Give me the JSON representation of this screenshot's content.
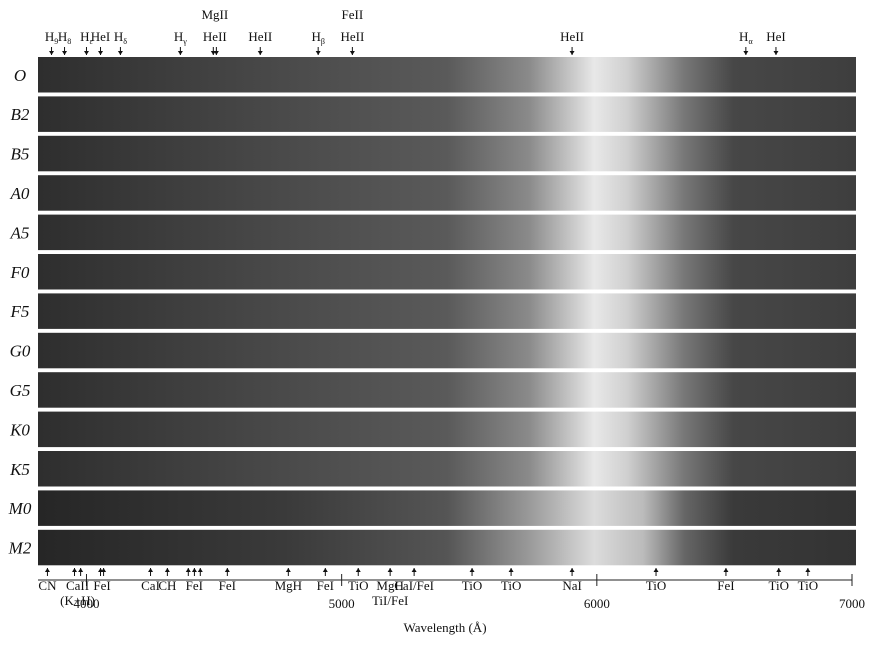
{
  "chart_data": {
    "type": "spectrum",
    "xlabel": "Wavelength (Å)",
    "xlim": [
      3810,
      7000
    ],
    "xticks": [
      4000,
      5000,
      6000,
      7000
    ],
    "categories": [
      "O",
      "B2",
      "B5",
      "A0",
      "A5",
      "F0",
      "F5",
      "G0",
      "G5",
      "K0",
      "K5",
      "M0",
      "M2"
    ],
    "top_lines": [
      {
        "text": "H",
        "sub": "9",
        "x": [
          3863
        ]
      },
      {
        "text": "H",
        "sub": "8",
        "x": [
          3914
        ]
      },
      {
        "text": "H",
        "sub": "ε",
        "x": [
          4000
        ]
      },
      {
        "text": "HeI",
        "x": [
          4055
        ]
      },
      {
        "text": "H",
        "sub": "δ",
        "x": [
          4133
        ]
      },
      {
        "text": "H",
        "sub": "γ",
        "x": [
          4368
        ]
      },
      {
        "text": "HeII",
        "above": "MgII",
        "x": [
          4497,
          4509
        ]
      },
      {
        "text": "HeII",
        "x": [
          4681
        ]
      },
      {
        "text": "H",
        "sub": "β",
        "x": [
          4908
        ]
      },
      {
        "text": "HeII",
        "above": "FeII",
        "x": [
          5042
        ]
      },
      {
        "text": "HeII",
        "x": [
          5903
        ]
      },
      {
        "text": "H",
        "sub": "α",
        "x": [
          6584
        ]
      },
      {
        "text": "HeI",
        "x": [
          6702
        ]
      }
    ],
    "bottom_lines": [
      {
        "text": "CN",
        "x": [
          3847
        ]
      },
      {
        "text": "CaII",
        "below": "(K+H)",
        "x": [
          3953,
          3977
        ]
      },
      {
        "text": "FeI",
        "x": [
          4055,
          4067
        ]
      },
      {
        "text": "CaI",
        "x": [
          4251
        ]
      },
      {
        "text": "CH",
        "x": [
          4317
        ]
      },
      {
        "text": "FeI",
        "x": [
          4399,
          4423,
          4446
        ]
      },
      {
        "text": "FeI",
        "x": [
          4552
        ]
      },
      {
        "text": "MgH",
        "x": [
          4791
        ]
      },
      {
        "text": "FeI",
        "x": [
          4936
        ]
      },
      {
        "text": "TiO",
        "x": [
          5065
        ]
      },
      {
        "text": "MgH",
        "below": "TiI/FeI",
        "x": [
          5190
        ]
      },
      {
        "text": "CaI/FeI",
        "x": [
          5284
        ]
      },
      {
        "text": "TiO",
        "x": [
          5511
        ]
      },
      {
        "text": "TiO",
        "x": [
          5664
        ]
      },
      {
        "text": "NaI",
        "x": [
          5903
        ]
      },
      {
        "text": "TiO",
        "x": [
          6232
        ]
      },
      {
        "text": "FeI",
        "x": [
          6506
        ]
      },
      {
        "text": "TiO",
        "x": [
          6713
        ]
      },
      {
        "text": "TiO",
        "x": [
          6827
        ]
      }
    ]
  }
}
